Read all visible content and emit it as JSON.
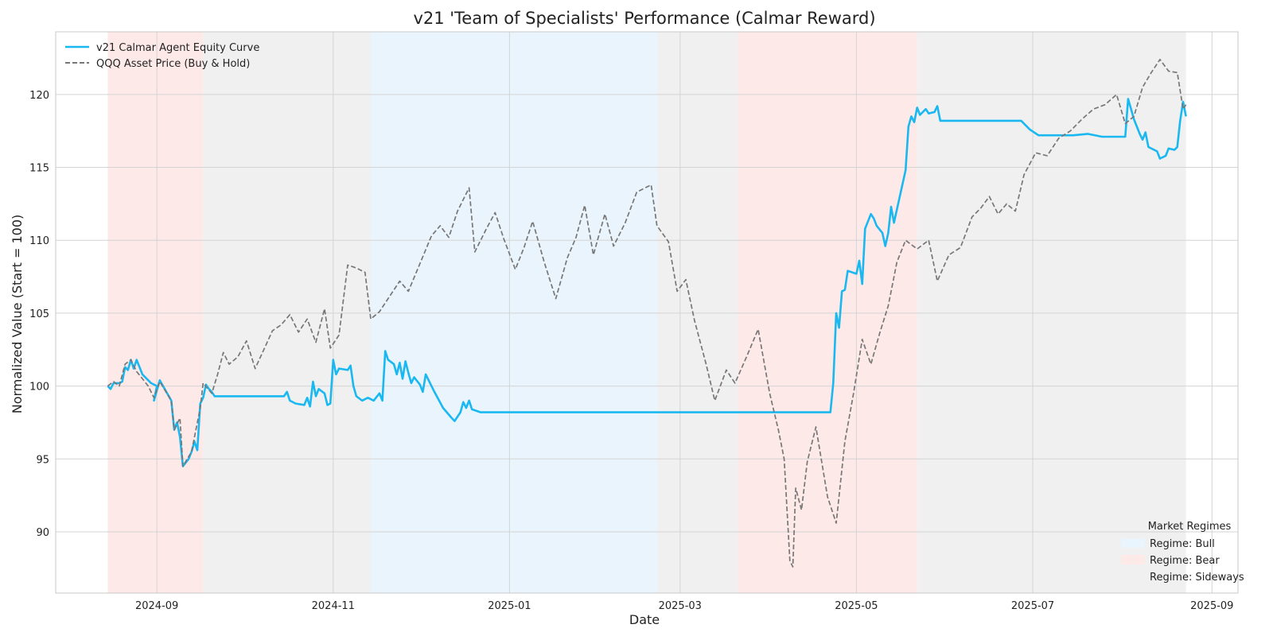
{
  "chart_data": {
    "type": "line",
    "title": "v21 'Team of Specialists' Performance (Calmar Reward)",
    "xlabel": "Date",
    "ylabel": "Normalized Value (Start = 100)",
    "xlim": [
      "2024-07-28",
      "2025-09-10"
    ],
    "ylim": [
      85.8,
      124.3
    ],
    "x_ticks": [
      "2024-09",
      "2024-11",
      "2025-01",
      "2025-03",
      "2025-05",
      "2025-07",
      "2025-09"
    ],
    "y_ticks": [
      90,
      95,
      100,
      105,
      110,
      115,
      120
    ],
    "grid": true,
    "legend_placement": "upper-left",
    "regimes_legend": {
      "title": "Market Regimes",
      "placement": "lower-right",
      "entries": [
        {
          "label": "Regime: Bull",
          "color": "#eaf4fd"
        },
        {
          "label": "Regime: Bear",
          "color": "#fde9e8"
        },
        {
          "label": "Regime: Sideways",
          "color": "#f0f0f0"
        }
      ]
    },
    "regimes": [
      {
        "regime": "Bear",
        "start": "2024-08-15",
        "end": "2024-09-17"
      },
      {
        "regime": "Sideways",
        "start": "2024-09-17",
        "end": "2024-11-14"
      },
      {
        "regime": "Bull",
        "start": "2024-11-14",
        "end": "2025-02-21"
      },
      {
        "regime": "Sideways",
        "start": "2025-02-21",
        "end": "2025-03-21"
      },
      {
        "regime": "Bear",
        "start": "2025-03-21",
        "end": "2025-05-22"
      },
      {
        "regime": "Sideways",
        "start": "2025-05-22",
        "end": "2025-08-23"
      }
    ],
    "series": [
      {
        "name": "v21 Calmar Agent Equity Curve",
        "color": "#1ab8f0",
        "style": "solid",
        "points": [
          [
            "2024-08-15",
            100.0
          ],
          [
            "2024-08-16",
            99.8
          ],
          [
            "2024-08-17",
            100.2
          ],
          [
            "2024-08-19",
            100.2
          ],
          [
            "2024-08-20",
            100.3
          ],
          [
            "2024-08-21",
            101.3
          ],
          [
            "2024-08-22",
            101.1
          ],
          [
            "2024-08-23",
            101.8
          ],
          [
            "2024-08-24",
            101.2
          ],
          [
            "2024-08-25",
            101.8
          ],
          [
            "2024-08-27",
            100.8
          ],
          [
            "2024-08-30",
            100.2
          ],
          [
            "2024-09-01",
            100.0
          ],
          [
            "2024-08-31",
            99.0
          ],
          [
            "2024-09-02",
            100.4
          ],
          [
            "2024-09-06",
            99.0
          ],
          [
            "2024-09-07",
            97.0
          ],
          [
            "2024-09-08",
            97.5
          ],
          [
            "2024-09-09",
            96.5
          ],
          [
            "2024-09-10",
            94.5
          ],
          [
            "2024-09-12",
            95.0
          ],
          [
            "2024-09-13",
            95.5
          ],
          [
            "2024-09-14",
            96.2
          ],
          [
            "2024-09-15",
            95.6
          ],
          [
            "2024-09-16",
            98.8
          ],
          [
            "2024-09-17",
            99.2
          ],
          [
            "2024-09-18",
            100.1
          ],
          [
            "2024-09-19",
            99.8
          ],
          [
            "2024-09-20",
            99.6
          ],
          [
            "2024-09-21",
            99.3
          ],
          [
            "2024-10-15",
            99.3
          ],
          [
            "2024-10-16",
            99.6
          ],
          [
            "2024-10-17",
            99.0
          ],
          [
            "2024-10-19",
            98.8
          ],
          [
            "2024-10-22",
            98.7
          ],
          [
            "2024-10-23",
            99.2
          ],
          [
            "2024-10-24",
            98.6
          ],
          [
            "2024-10-25",
            100.3
          ],
          [
            "2024-10-26",
            99.3
          ],
          [
            "2024-10-27",
            99.8
          ],
          [
            "2024-10-29",
            99.5
          ],
          [
            "2024-10-30",
            98.7
          ],
          [
            "2024-10-31",
            98.8
          ],
          [
            "2024-11-01",
            101.8
          ],
          [
            "2024-11-02",
            100.8
          ],
          [
            "2024-11-03",
            101.2
          ],
          [
            "2024-11-06",
            101.1
          ],
          [
            "2024-11-07",
            101.4
          ],
          [
            "2024-11-08",
            100.0
          ],
          [
            "2024-11-09",
            99.3
          ],
          [
            "2024-11-11",
            99.0
          ],
          [
            "2024-11-13",
            99.2
          ],
          [
            "2024-11-15",
            99.0
          ],
          [
            "2024-11-17",
            99.5
          ],
          [
            "2024-11-18",
            99.0
          ],
          [
            "2024-11-19",
            102.4
          ],
          [
            "2024-11-20",
            101.8
          ],
          [
            "2024-11-22",
            101.5
          ],
          [
            "2024-11-23",
            100.8
          ],
          [
            "2024-11-24",
            101.6
          ],
          [
            "2024-11-25",
            100.5
          ],
          [
            "2024-11-26",
            101.7
          ],
          [
            "2024-11-27",
            100.9
          ],
          [
            "2024-11-28",
            100.2
          ],
          [
            "2024-11-29",
            100.6
          ],
          [
            "2024-12-01",
            100.1
          ],
          [
            "2024-12-02",
            99.6
          ],
          [
            "2024-12-03",
            100.8
          ],
          [
            "2024-12-06",
            99.6
          ],
          [
            "2024-12-09",
            98.5
          ],
          [
            "2024-12-12",
            97.8
          ],
          [
            "2024-12-13",
            97.6
          ],
          [
            "2024-12-15",
            98.2
          ],
          [
            "2024-12-16",
            98.9
          ],
          [
            "2024-12-17",
            98.5
          ],
          [
            "2024-12-18",
            99.0
          ],
          [
            "2024-12-19",
            98.4
          ],
          [
            "2024-12-22",
            98.2
          ],
          [
            "2025-04-22",
            98.2
          ],
          [
            "2025-04-23",
            100.2
          ],
          [
            "2025-04-24",
            105.0
          ],
          [
            "2025-04-25",
            104.0
          ],
          [
            "2025-04-26",
            106.5
          ],
          [
            "2025-04-27",
            106.6
          ],
          [
            "2025-04-28",
            107.9
          ],
          [
            "2025-05-01",
            107.7
          ],
          [
            "2025-05-02",
            108.6
          ],
          [
            "2025-05-03",
            107.0
          ],
          [
            "2025-05-04",
            110.8
          ],
          [
            "2025-05-06",
            111.8
          ],
          [
            "2025-05-07",
            111.5
          ],
          [
            "2025-05-08",
            111.0
          ],
          [
            "2025-05-10",
            110.5
          ],
          [
            "2025-05-11",
            109.6
          ],
          [
            "2025-05-12",
            110.5
          ],
          [
            "2025-05-13",
            112.3
          ],
          [
            "2025-05-14",
            111.2
          ],
          [
            "2025-05-18",
            114.8
          ],
          [
            "2025-05-19",
            117.8
          ],
          [
            "2025-05-20",
            118.5
          ],
          [
            "2025-05-21",
            118.1
          ],
          [
            "2025-05-22",
            119.1
          ],
          [
            "2025-05-23",
            118.6
          ],
          [
            "2025-05-25",
            119.0
          ],
          [
            "2025-05-26",
            118.7
          ],
          [
            "2025-05-28",
            118.8
          ],
          [
            "2025-05-29",
            119.2
          ],
          [
            "2025-05-30",
            118.2
          ],
          [
            "2025-06-27",
            118.2
          ],
          [
            "2025-06-30",
            117.6
          ],
          [
            "2025-07-03",
            117.2
          ],
          [
            "2025-07-15",
            117.2
          ],
          [
            "2025-07-20",
            117.3
          ],
          [
            "2025-07-25",
            117.1
          ],
          [
            "2025-08-02",
            117.1
          ],
          [
            "2025-08-03",
            119.7
          ],
          [
            "2025-08-04",
            119.0
          ],
          [
            "2025-08-05",
            118.3
          ],
          [
            "2025-08-07",
            117.3
          ],
          [
            "2025-08-08",
            116.9
          ],
          [
            "2025-08-09",
            117.4
          ],
          [
            "2025-08-10",
            116.4
          ],
          [
            "2025-08-13",
            116.1
          ],
          [
            "2025-08-14",
            115.6
          ],
          [
            "2025-08-16",
            115.8
          ],
          [
            "2025-08-17",
            116.3
          ],
          [
            "2025-08-19",
            116.2
          ],
          [
            "2025-08-20",
            116.4
          ],
          [
            "2025-08-21",
            118.2
          ],
          [
            "2025-08-22",
            119.5
          ],
          [
            "2025-08-23",
            118.5
          ]
        ]
      },
      {
        "name": "QQQ Asset Price (Buy & Hold)",
        "color": "#777777",
        "style": "dashed",
        "points": [
          [
            "2024-08-15",
            100.0
          ],
          [
            "2024-08-17",
            100.3
          ],
          [
            "2024-08-19",
            100.0
          ],
          [
            "2024-08-21",
            101.5
          ],
          [
            "2024-08-23",
            101.8
          ],
          [
            "2024-08-25",
            101.0
          ],
          [
            "2024-08-27",
            100.5
          ],
          [
            "2024-08-29",
            100.0
          ],
          [
            "2024-08-31",
            99.2
          ],
          [
            "2024-09-02",
            100.3
          ],
          [
            "2024-09-06",
            99.0
          ],
          [
            "2024-09-07",
            97.0
          ],
          [
            "2024-09-09",
            97.8
          ],
          [
            "2024-09-10",
            94.5
          ],
          [
            "2024-09-13",
            95.5
          ],
          [
            "2024-09-16",
            98.5
          ],
          [
            "2024-09-17",
            100.2
          ],
          [
            "2024-09-20",
            99.5
          ],
          [
            "2024-09-22",
            100.8
          ],
          [
            "2024-09-24",
            102.3
          ],
          [
            "2024-09-26",
            101.5
          ],
          [
            "2024-09-29",
            102.0
          ],
          [
            "2024-10-02",
            103.1
          ],
          [
            "2024-10-05",
            101.2
          ],
          [
            "2024-10-08",
            102.5
          ],
          [
            "2024-10-11",
            103.8
          ],
          [
            "2024-10-14",
            104.2
          ],
          [
            "2024-10-17",
            104.9
          ],
          [
            "2024-10-20",
            103.7
          ],
          [
            "2024-10-23",
            104.6
          ],
          [
            "2024-10-26",
            103.0
          ],
          [
            "2024-10-29",
            105.3
          ],
          [
            "2024-10-31",
            102.6
          ],
          [
            "2024-11-03",
            103.5
          ],
          [
            "2024-11-06",
            108.3
          ],
          [
            "2024-11-09",
            108.1
          ],
          [
            "2024-11-12",
            107.8
          ],
          [
            "2024-11-14",
            104.6
          ],
          [
            "2024-11-17",
            105.1
          ],
          [
            "2024-11-20",
            106.0
          ],
          [
            "2024-11-24",
            107.2
          ],
          [
            "2024-11-27",
            106.5
          ],
          [
            "2024-12-01",
            108.4
          ],
          [
            "2024-12-05",
            110.3
          ],
          [
            "2024-12-08",
            111.0
          ],
          [
            "2024-12-11",
            110.2
          ],
          [
            "2024-12-14",
            112.0
          ],
          [
            "2024-12-18",
            113.6
          ],
          [
            "2024-12-20",
            109.2
          ],
          [
            "2024-12-24",
            110.8
          ],
          [
            "2024-12-27",
            111.9
          ],
          [
            "2024-12-30",
            110.1
          ],
          [
            "2025-01-03",
            108.0
          ],
          [
            "2025-01-06",
            109.5
          ],
          [
            "2025-01-09",
            111.3
          ],
          [
            "2025-01-13",
            108.5
          ],
          [
            "2025-01-17",
            106.0
          ],
          [
            "2025-01-21",
            108.8
          ],
          [
            "2025-01-24",
            110.2
          ],
          [
            "2025-01-27",
            112.4
          ],
          [
            "2025-01-30",
            109.0
          ],
          [
            "2025-02-03",
            111.8
          ],
          [
            "2025-02-06",
            109.6
          ],
          [
            "2025-02-10",
            111.2
          ],
          [
            "2025-02-14",
            113.3
          ],
          [
            "2025-02-19",
            113.8
          ],
          [
            "2025-02-21",
            111.0
          ],
          [
            "2025-02-25",
            109.9
          ],
          [
            "2025-02-28",
            106.5
          ],
          [
            "2025-03-03",
            107.3
          ],
          [
            "2025-03-06",
            104.5
          ],
          [
            "2025-03-10",
            101.5
          ],
          [
            "2025-03-13",
            99.0
          ],
          [
            "2025-03-17",
            101.1
          ],
          [
            "2025-03-20",
            100.2
          ],
          [
            "2025-03-24",
            102.0
          ],
          [
            "2025-03-28",
            103.9
          ],
          [
            "2025-04-01",
            99.5
          ],
          [
            "2025-04-04",
            97.0
          ],
          [
            "2025-04-06",
            95.0
          ],
          [
            "2025-04-08",
            88.0
          ],
          [
            "2025-04-09",
            87.6
          ],
          [
            "2025-04-10",
            93.0
          ],
          [
            "2025-04-12",
            91.5
          ],
          [
            "2025-04-14",
            94.8
          ],
          [
            "2025-04-17",
            97.2
          ],
          [
            "2025-04-21",
            92.4
          ],
          [
            "2025-04-24",
            90.6
          ],
          [
            "2025-04-27",
            96.2
          ],
          [
            "2025-04-30",
            99.5
          ],
          [
            "2025-05-03",
            103.2
          ],
          [
            "2025-05-06",
            101.5
          ],
          [
            "2025-05-09",
            103.6
          ],
          [
            "2025-05-12",
            105.5
          ],
          [
            "2025-05-15",
            108.5
          ],
          [
            "2025-05-18",
            110.0
          ],
          [
            "2025-05-22",
            109.4
          ],
          [
            "2025-05-26",
            110.0
          ],
          [
            "2025-05-29",
            107.2
          ],
          [
            "2025-06-02",
            109.0
          ],
          [
            "2025-06-06",
            109.5
          ],
          [
            "2025-06-10",
            111.6
          ],
          [
            "2025-06-13",
            112.2
          ],
          [
            "2025-06-16",
            113.0
          ],
          [
            "2025-06-19",
            111.8
          ],
          [
            "2025-06-22",
            112.5
          ],
          [
            "2025-06-25",
            112.0
          ],
          [
            "2025-06-28",
            114.5
          ],
          [
            "2025-07-02",
            116.0
          ],
          [
            "2025-07-06",
            115.8
          ],
          [
            "2025-07-10",
            117.0
          ],
          [
            "2025-07-14",
            117.5
          ],
          [
            "2025-07-18",
            118.3
          ],
          [
            "2025-07-22",
            119.0
          ],
          [
            "2025-07-26",
            119.3
          ],
          [
            "2025-07-30",
            120.0
          ],
          [
            "2025-08-02",
            118.0
          ],
          [
            "2025-08-05",
            118.5
          ],
          [
            "2025-08-08",
            120.5
          ],
          [
            "2025-08-11",
            121.5
          ],
          [
            "2025-08-14",
            122.4
          ],
          [
            "2025-08-17",
            121.6
          ],
          [
            "2025-08-20",
            121.5
          ],
          [
            "2025-08-22",
            119.0
          ],
          [
            "2025-08-23",
            119.3
          ]
        ]
      }
    ]
  }
}
